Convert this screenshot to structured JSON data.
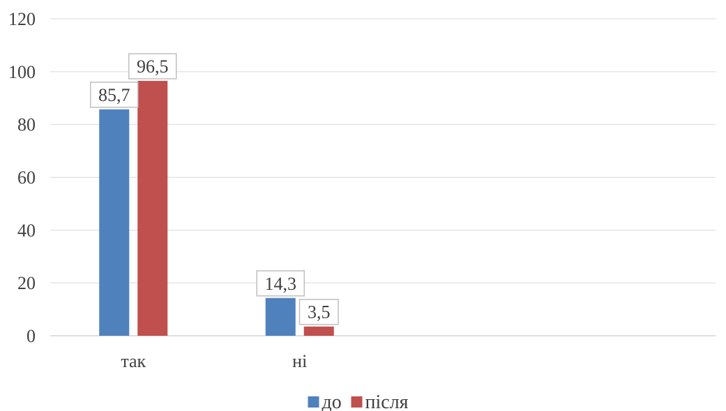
{
  "chart_data": {
    "type": "bar",
    "categories": [
      "так",
      "ні",
      "",
      ""
    ],
    "series": [
      {
        "name": "до",
        "values": [
          85.7,
          14.3,
          null,
          null
        ],
        "color": "#4F81BD"
      },
      {
        "name": "після",
        "values": [
          96.5,
          3.5,
          null,
          null
        ],
        "color": "#C0504D"
      }
    ],
    "data_labels": [
      [
        "85,7",
        "14,3"
      ],
      [
        "96,5",
        "3,5"
      ]
    ],
    "ylim": [
      0,
      120
    ],
    "yticks": [
      0,
      20,
      40,
      60,
      80,
      100,
      120
    ],
    "grid": true,
    "legend_position": "bottom"
  }
}
